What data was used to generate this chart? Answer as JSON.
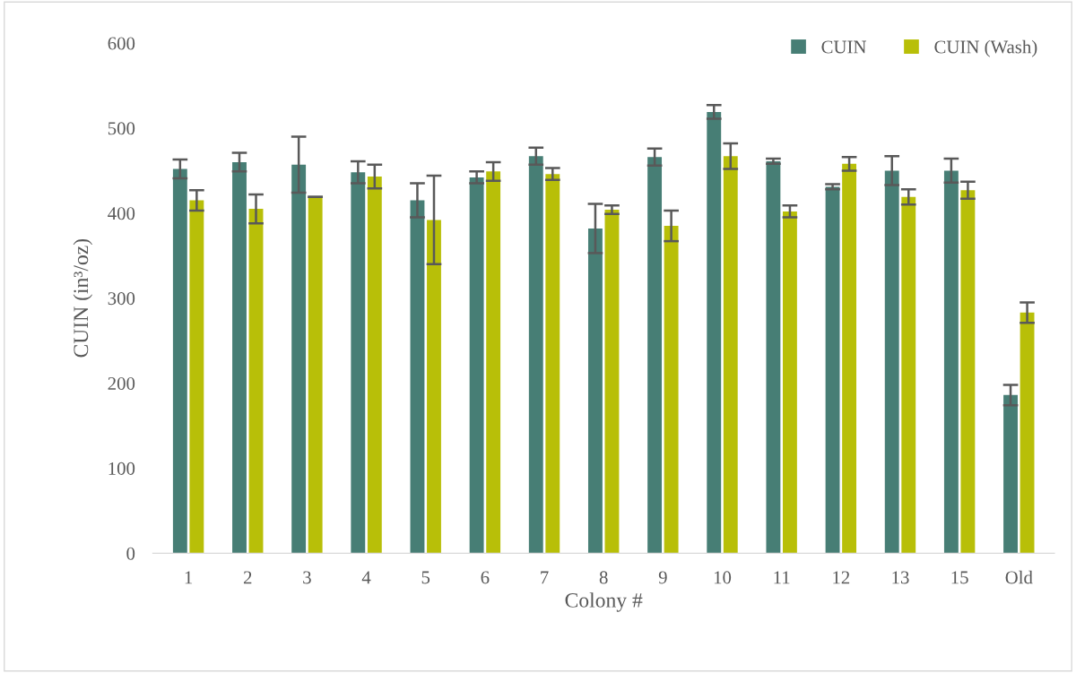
{
  "chart_data": {
    "type": "bar",
    "xlabel": "Colony #",
    "ylabel": "CUIN (in³/oz)",
    "categories": [
      "1",
      "2",
      "3",
      "4",
      "5",
      "6",
      "7",
      "8",
      "9",
      "10",
      "11",
      "12",
      "13",
      "15",
      "Old"
    ],
    "ylim": [
      0,
      600
    ],
    "yticks": [
      0,
      100,
      200,
      300,
      400,
      500,
      600
    ],
    "grid": false,
    "legend": "top right",
    "series": [
      {
        "name": "CUIN",
        "color": "#477e75",
        "values": [
          452,
          460,
          457,
          448,
          415,
          442,
          467,
          382,
          466,
          519,
          461,
          431,
          450,
          450,
          186
        ],
        "errors": [
          11,
          11,
          33,
          13,
          20,
          7,
          10,
          29,
          10,
          8,
          3,
          3,
          17,
          14,
          12
        ]
      },
      {
        "name": "CUIN (Wash)",
        "color": "#b8bf08",
        "values": [
          415,
          405,
          419,
          443,
          392,
          449,
          446,
          404,
          385,
          467,
          402,
          458,
          419,
          427,
          283
        ],
        "errors": [
          12,
          17,
          0,
          14,
          52,
          11,
          7,
          5,
          18,
          15,
          7,
          8,
          9,
          10,
          12
        ]
      }
    ]
  }
}
